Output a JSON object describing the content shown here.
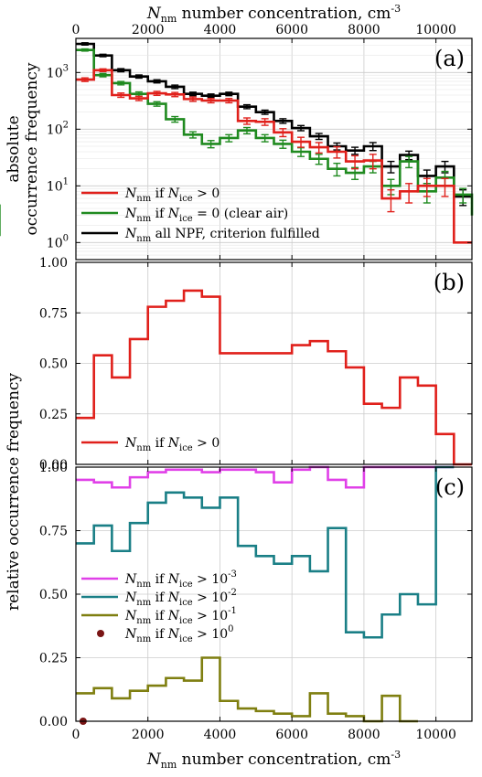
{
  "chart_data": [
    {
      "panel": "a",
      "type": "line",
      "step": true,
      "panel_label": "(a)",
      "top_axis_label": "N_nm number concentration, cm^-3",
      "ylabel_lines": [
        "absolute",
        "occurrence frequency"
      ],
      "y_scale": "log",
      "ylim": [
        0.5,
        4000
      ],
      "xlim": [
        0,
        11000
      ],
      "x_ticks": [
        0,
        2000,
        4000,
        6000,
        8000,
        10000
      ],
      "y_ticks": [
        {
          "v": 1,
          "label": "10⁰"
        },
        {
          "v": 10,
          "label": "10¹"
        },
        {
          "v": 100,
          "label": "10²"
        },
        {
          "v": 1000,
          "label": "10³"
        }
      ],
      "grid": true,
      "legend_position": "lower-left",
      "bin_edges": [
        0,
        500,
        1000,
        1500,
        2000,
        2500,
        3000,
        3500,
        4000,
        4500,
        5000,
        5500,
        6000,
        6500,
        7000,
        7500,
        8000,
        8500,
        9000,
        9500,
        10000,
        10500,
        11000
      ],
      "series": [
        {
          "name": "all NPF, criterion fulfilled",
          "color": "#000000",
          "values": [
            3200,
            2000,
            1100,
            850,
            700,
            560,
            420,
            390,
            420,
            250,
            200,
            140,
            105,
            75,
            50,
            42,
            50,
            22,
            35,
            15,
            22,
            6.5,
            null
          ],
          "errors": [
            150,
            100,
            70,
            55,
            45,
            40,
            30,
            28,
            30,
            20,
            17,
            13,
            11,
            9,
            7,
            6,
            8,
            5,
            6,
            4,
            5,
            2,
            null
          ]
        },
        {
          "name": "if N_ice = 0 (clear air)",
          "color": "#1f8a1f",
          "values": [
            2500,
            900,
            650,
            420,
            280,
            150,
            80,
            55,
            70,
            95,
            70,
            55,
            40,
            30,
            20,
            17,
            22,
            10,
            27,
            8,
            14,
            7,
            3
          ],
          "errors": [
            110,
            60,
            45,
            35,
            25,
            17,
            10,
            8,
            10,
            12,
            10,
            9,
            7,
            6,
            5,
            4,
            5,
            3,
            6,
            3,
            4,
            2,
            1.7
          ]
        },
        {
          "name": "if N_ice > 0",
          "color": "#e0201b",
          "values": [
            750,
            1100,
            400,
            350,
            430,
            410,
            340,
            320,
            320,
            140,
            135,
            88,
            60,
            48,
            40,
            27,
            28,
            6,
            8,
            10,
            10,
            1,
            null
          ],
          "errors": [
            55,
            60,
            35,
            30,
            35,
            35,
            30,
            28,
            28,
            18,
            18,
            14,
            12,
            10,
            9,
            7,
            8,
            2.5,
            3,
            3.5,
            3.5,
            0,
            null
          ]
        }
      ],
      "legend": [
        {
          "var": "N",
          "sub": "nm",
          "text": " if ",
          "var2": "N",
          "sub2": "ice",
          "rest": " > 0",
          "color": "#e0201b"
        },
        {
          "var": "N",
          "sub": "nm",
          "text": " if ",
          "var2": "N",
          "sub2": "ice",
          "rest": " = 0 (clear air)",
          "color": "#1f8a1f"
        },
        {
          "var": "N",
          "sub": "nm",
          "text": "  all NPF, criterion fulfilled",
          "var2": "",
          "sub2": "",
          "rest": "",
          "color": "#000000"
        }
      ]
    },
    {
      "panel": "b",
      "type": "line",
      "step": true,
      "panel_label": "(b)",
      "ylim": [
        0,
        1
      ],
      "xlim": [
        0,
        11000
      ],
      "y_ticks": [
        0,
        0.25,
        0.5,
        0.75,
        1.0
      ],
      "y_tick_labels": [
        "0.00",
        "0.25",
        "0.50",
        "0.75",
        "1.00"
      ],
      "grid": true,
      "legend_position": "lower-left",
      "bin_edges": [
        0,
        500,
        1000,
        1500,
        2000,
        2500,
        3000,
        3500,
        4000,
        4500,
        5000,
        5500,
        6000,
        6500,
        7000,
        7500,
        8000,
        8500,
        9000,
        9500,
        10000,
        10500,
        11000
      ],
      "series": [
        {
          "name": "if N_ice > 0",
          "color": "#e0201b",
          "values": [
            0.23,
            0.54,
            0.43,
            0.62,
            0.78,
            0.81,
            0.86,
            0.83,
            0.55,
            0.55,
            0.55,
            0.55,
            0.59,
            0.61,
            0.56,
            0.48,
            0.3,
            0.28,
            0.43,
            0.39,
            0.15,
            0.0
          ]
        }
      ],
      "legend": [
        {
          "var": "N",
          "sub": "nm",
          "text": " if ",
          "var2": "N",
          "sub2": "ice",
          "rest": " > 0",
          "color": "#e0201b"
        }
      ]
    },
    {
      "panel": "c",
      "type": "line",
      "step": true,
      "panel_label": "(c)",
      "xlabel": "N_nm number concentration, cm^-3",
      "ylim": [
        0,
        1
      ],
      "xlim": [
        0,
        11000
      ],
      "x_ticks": [
        0,
        2000,
        4000,
        6000,
        8000,
        10000
      ],
      "y_ticks": [
        0,
        0.25,
        0.5,
        0.75,
        1.0
      ],
      "y_tick_labels": [
        "0.00",
        "0.25",
        "0.50",
        "0.75",
        "1.00"
      ],
      "grid": true,
      "legend_position": "lower-left",
      "bin_edges": [
        0,
        500,
        1000,
        1500,
        2000,
        2500,
        3000,
        3500,
        4000,
        4500,
        5000,
        5500,
        6000,
        6500,
        7000,
        7500,
        8000,
        8500,
        9000,
        9500,
        10000,
        10500,
        11000
      ],
      "series": [
        {
          "name": "if N_ice > 10^-3",
          "color": "#e040e8",
          "values": [
            0.95,
            0.94,
            0.92,
            0.96,
            0.98,
            0.99,
            0.99,
            0.98,
            0.99,
            0.99,
            0.98,
            0.94,
            0.99,
            1.0,
            0.95,
            0.92,
            1.0,
            1.0,
            1.0,
            1.0,
            1.0
          ]
        },
        {
          "name": "if N_ice > 10^-2",
          "color": "#1a7f86",
          "values": [
            0.7,
            0.77,
            0.67,
            0.78,
            0.86,
            0.9,
            0.88,
            0.84,
            0.88,
            0.69,
            0.65,
            0.62,
            0.65,
            0.59,
            0.76,
            0.35,
            0.33,
            0.42,
            0.5,
            0.46,
            1.0
          ]
        },
        {
          "name": "if N_ice > 10^-1",
          "color": "#7f7f10",
          "values": [
            0.11,
            0.13,
            0.09,
            0.12,
            0.14,
            0.17,
            0.16,
            0.25,
            0.08,
            0.05,
            0.04,
            0.03,
            0.02,
            0.11,
            0.03,
            0.02,
            0.0,
            0.1,
            0.0,
            null,
            null
          ]
        },
        {
          "name": "if N_ice > 10^0",
          "color": "#7a1515",
          "marker": "dot",
          "points": [
            [
              200,
              0.0
            ]
          ]
        }
      ],
      "legend": [
        {
          "var": "N",
          "sub": "nm",
          "text": " if ",
          "var2": "N",
          "sub2": "ice",
          "rest": " > 10",
          "sup": "-3",
          "color": "#e040e8"
        },
        {
          "var": "N",
          "sub": "nm",
          "text": " if ",
          "var2": "N",
          "sub2": "ice",
          "rest": " > 10",
          "sup": "-2",
          "color": "#1a7f86"
        },
        {
          "var": "N",
          "sub": "nm",
          "text": " if ",
          "var2": "N",
          "sub2": "ice",
          "rest": " > 10",
          "sup": "-1",
          "color": "#7f7f10"
        },
        {
          "var": "N",
          "sub": "nm",
          "text": " if ",
          "var2": "N",
          "sub2": "ice",
          "rest": " > 10",
          "sup": "0",
          "color": "#7a1515",
          "marker": "dot"
        }
      ]
    }
  ],
  "shared_ylabel": "relative occurrence frequency",
  "x_tick_labels": [
    "0",
    "2000",
    "4000",
    "6000",
    "8000",
    "10000"
  ]
}
